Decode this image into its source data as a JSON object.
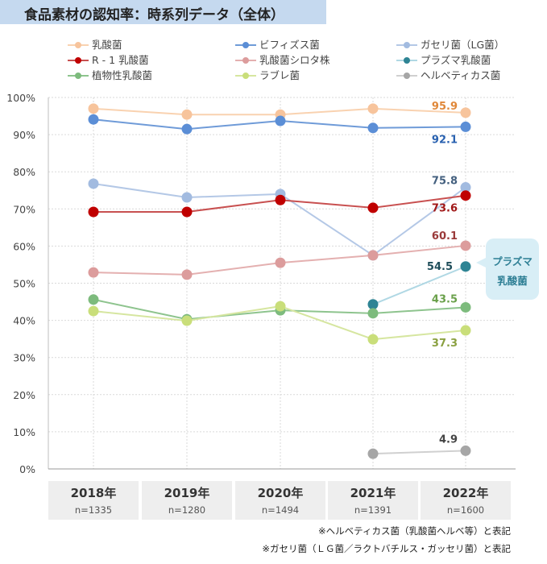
{
  "title": "食品素材の認知率：時系列データ（全体）",
  "callout": {
    "line1": "プラズマ",
    "line2": "乳酸菌"
  },
  "footnotes": [
    "※ヘルベティカス菌（乳酸菌ヘルベ等）と表記",
    "※ガセリ菌（ＬＧ菌／ラクトバチルス・ガッセリ菌）と表記"
  ],
  "columns": [
    {
      "year": "2018年",
      "n": "n=1335"
    },
    {
      "year": "2019年",
      "n": "n=1280"
    },
    {
      "year": "2020年",
      "n": "n=1494"
    },
    {
      "year": "2021年",
      "n": "n=1391"
    },
    {
      "year": "2022年",
      "n": "n=1600"
    }
  ],
  "chart_data": {
    "type": "line",
    "title": "食品素材の認知率：時系列データ（全体）",
    "categories": [
      "2018年",
      "2019年",
      "2020年",
      "2021年",
      "2022年"
    ],
    "ylim": [
      0,
      100
    ],
    "yticks": [
      "0%",
      "10%",
      "20%",
      "30%",
      "40%",
      "50%",
      "60%",
      "70%",
      "80%",
      "90%",
      "100%"
    ],
    "grid": true,
    "legend_placement": "top",
    "series": [
      {
        "name": "乳酸菌",
        "values": [
          97.0,
          95.4,
          95.4,
          97.0,
          95.9
        ],
        "line": "#f9d2b0",
        "dot": "#f7c49c",
        "label": "95.9",
        "label_color": "#e0883a"
      },
      {
        "name": "ビフィズス菌",
        "values": [
          94.1,
          91.5,
          93.7,
          91.8,
          92.1
        ],
        "line": "#6f9bd8",
        "dot": "#5b8ed6",
        "label": "92.1",
        "label_color": "#2a62b0"
      },
      {
        "name": "ガセリ菌（LG菌）",
        "values": [
          76.8,
          73.1,
          74.0,
          57.5,
          75.8
        ],
        "line": "#b4c8e6",
        "dot": "#a2bbe0",
        "label": "75.8",
        "label_color": "#44607f"
      },
      {
        "name": "R - 1 乳酸菌",
        "values": [
          69.2,
          69.2,
          72.4,
          70.3,
          73.6
        ],
        "line": "#c85050",
        "dot": "#c00000",
        "label": "73.6",
        "label_color": "#a01818"
      },
      {
        "name": "乳酸菌シロタ株",
        "values": [
          52.9,
          52.3,
          55.5,
          57.5,
          60.1
        ],
        "line": "#e4b0b0",
        "dot": "#dc9c9c",
        "label": "60.1",
        "label_color": "#9a3a3a"
      },
      {
        "name": "プラズマ乳酸菌",
        "values": [
          null,
          null,
          null,
          44.3,
          54.5
        ],
        "line": "#b0d8e4",
        "dot": "#2e8494",
        "label": "54.5",
        "label_color": "#1f4d5a"
      },
      {
        "name": "植物性乳酸菌",
        "values": [
          45.6,
          40.3,
          42.7,
          41.9,
          43.5
        ],
        "line": "#8ec48e",
        "dot": "#7dbb7d",
        "label": "43.5",
        "label_color": "#6aa04a"
      },
      {
        "name": "ラブレ菌",
        "values": [
          42.5,
          39.9,
          43.8,
          34.9,
          37.3
        ],
        "line": "#d6e6a0",
        "dot": "#c9de7a",
        "label": "37.3",
        "label_color": "#8aa040"
      },
      {
        "name": "ヘルベティカス菌",
        "values": [
          null,
          null,
          null,
          4.1,
          4.9
        ],
        "line": "#d0d0d0",
        "dot": "#a6a6a6",
        "label": "4.9",
        "label_color": "#444444"
      }
    ]
  }
}
